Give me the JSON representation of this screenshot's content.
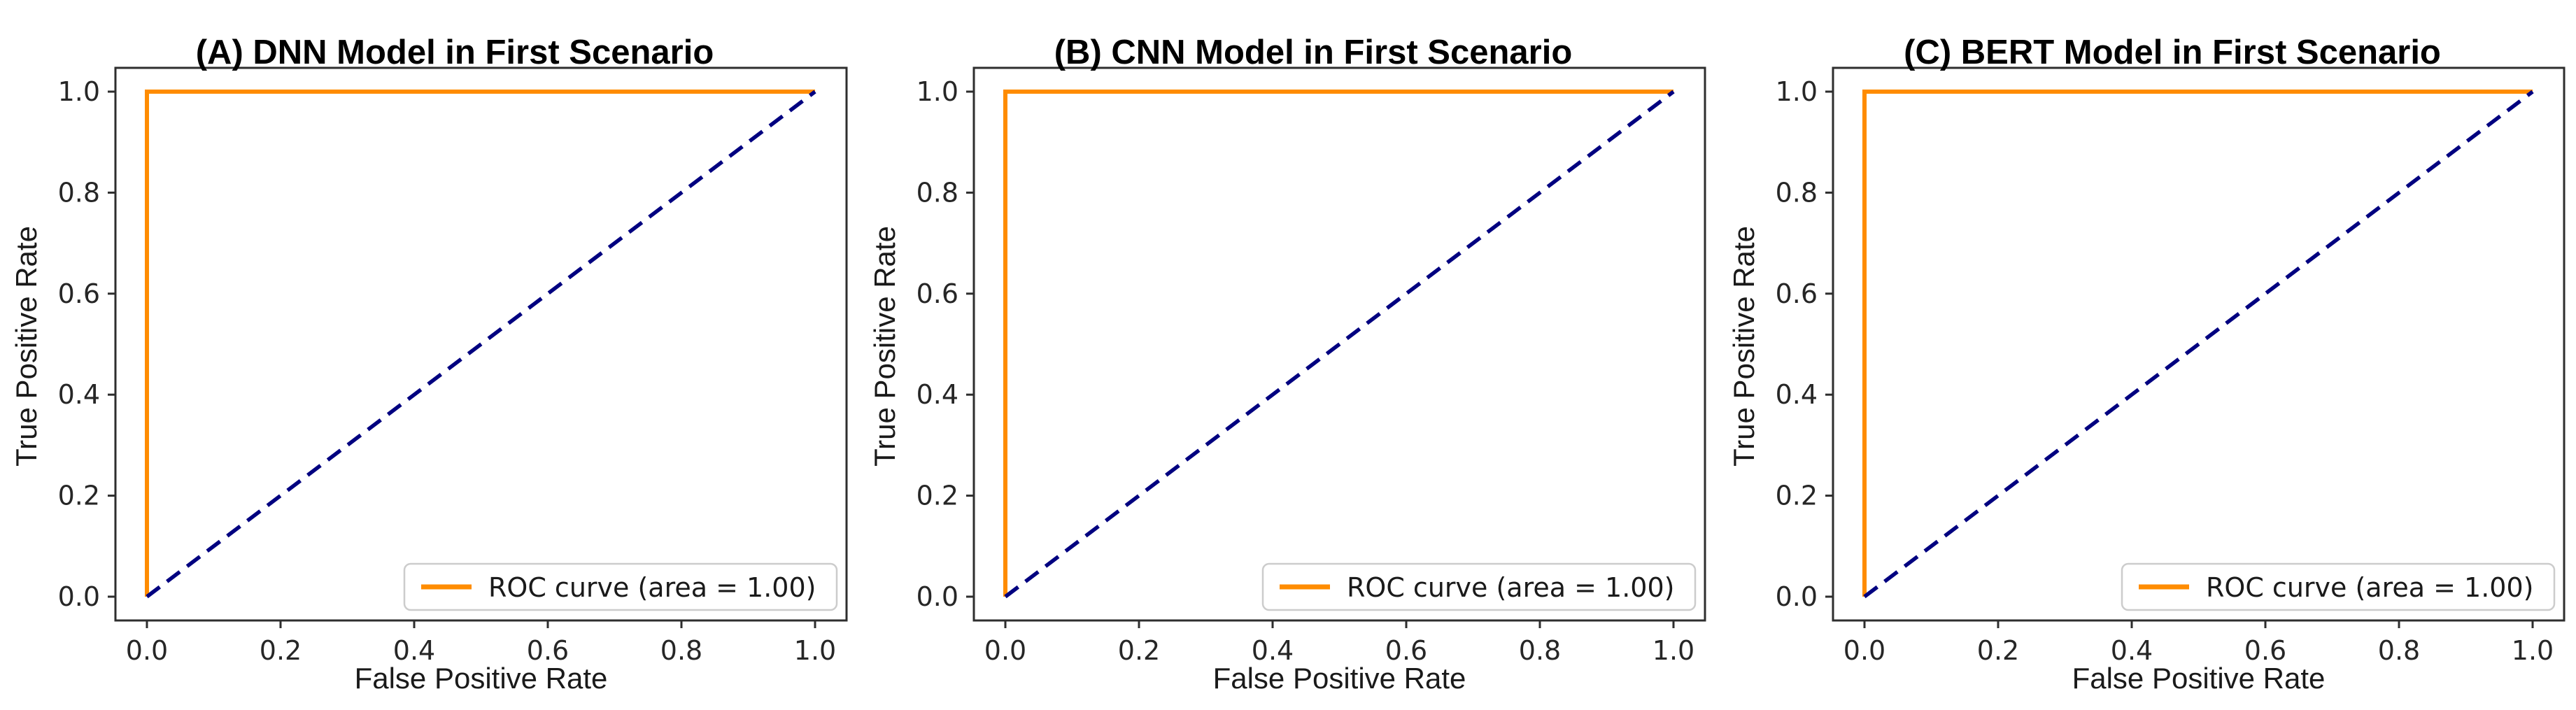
{
  "figure": {
    "background": "#ffffff",
    "frame_color": "#2e2e2e",
    "tick_label_color": "#262626",
    "legend_border_color": "#cccccc",
    "legend_text_color": "#1a1a1a"
  },
  "chart_data": [
    {
      "type": "line",
      "title_prefix": "(A)",
      "title_rest": " DNN Model in First Scenario",
      "xlabel": "False Positive Rate",
      "ylabel": "True Positive Rate",
      "x_ticks": [
        "0.0",
        "0.2",
        "0.4",
        "0.6",
        "0.8",
        "1.0"
      ],
      "y_ticks": [
        "0.0",
        "0.2",
        "0.4",
        "0.6",
        "0.8",
        "1.0"
      ],
      "xlim": [
        -0.05,
        1.05
      ],
      "ylim": [
        -0.05,
        1.05
      ],
      "grid": false,
      "legend": {
        "label": "ROC curve (area = 1.00)",
        "position": "lower right"
      },
      "series": [
        {
          "name": "ROC curve",
          "color": "#ff8c00",
          "style": "solid",
          "auc": 1.0,
          "points": [
            [
              0,
              0
            ],
            [
              0,
              1
            ],
            [
              1,
              1
            ]
          ]
        },
        {
          "name": "chance line",
          "color": "#000080",
          "style": "dashed",
          "points": [
            [
              0,
              0
            ],
            [
              1,
              1
            ]
          ]
        }
      ]
    },
    {
      "type": "line",
      "title_prefix": "(B)",
      "title_rest": " CNN Model in First Scenario",
      "xlabel": "False Positive Rate",
      "ylabel": "True Positive Rate",
      "x_ticks": [
        "0.0",
        "0.2",
        "0.4",
        "0.6",
        "0.8",
        "1.0"
      ],
      "y_ticks": [
        "0.0",
        "0.2",
        "0.4",
        "0.6",
        "0.8",
        "1.0"
      ],
      "xlim": [
        -0.05,
        1.05
      ],
      "ylim": [
        -0.05,
        1.05
      ],
      "grid": false,
      "legend": {
        "label": "ROC curve (area = 1.00)",
        "position": "lower right"
      },
      "series": [
        {
          "name": "ROC curve",
          "color": "#ff8c00",
          "style": "solid",
          "auc": 1.0,
          "points": [
            [
              0,
              0
            ],
            [
              0,
              1
            ],
            [
              1,
              1
            ]
          ]
        },
        {
          "name": "chance line",
          "color": "#000080",
          "style": "dashed",
          "points": [
            [
              0,
              0
            ],
            [
              1,
              1
            ]
          ]
        }
      ]
    },
    {
      "type": "line",
      "title_prefix": "(C)",
      "title_rest": " BERT Model in First Scenario",
      "xlabel": "False Positive Rate",
      "ylabel": "True Positive Rate",
      "x_ticks": [
        "0.0",
        "0.2",
        "0.4",
        "0.6",
        "0.8",
        "1.0"
      ],
      "y_ticks": [
        "0.0",
        "0.2",
        "0.4",
        "0.6",
        "0.8",
        "1.0"
      ],
      "xlim": [
        -0.05,
        1.05
      ],
      "ylim": [
        -0.05,
        1.05
      ],
      "grid": false,
      "legend": {
        "label": "ROC curve (area = 1.00)",
        "position": "lower right"
      },
      "series": [
        {
          "name": "ROC curve",
          "color": "#ff8c00",
          "style": "solid",
          "auc": 1.0,
          "points": [
            [
              0,
              0
            ],
            [
              0,
              1
            ],
            [
              1,
              1
            ]
          ]
        },
        {
          "name": "chance line",
          "color": "#000080",
          "style": "dashed",
          "points": [
            [
              0,
              0
            ],
            [
              1,
              1
            ]
          ]
        }
      ]
    }
  ]
}
